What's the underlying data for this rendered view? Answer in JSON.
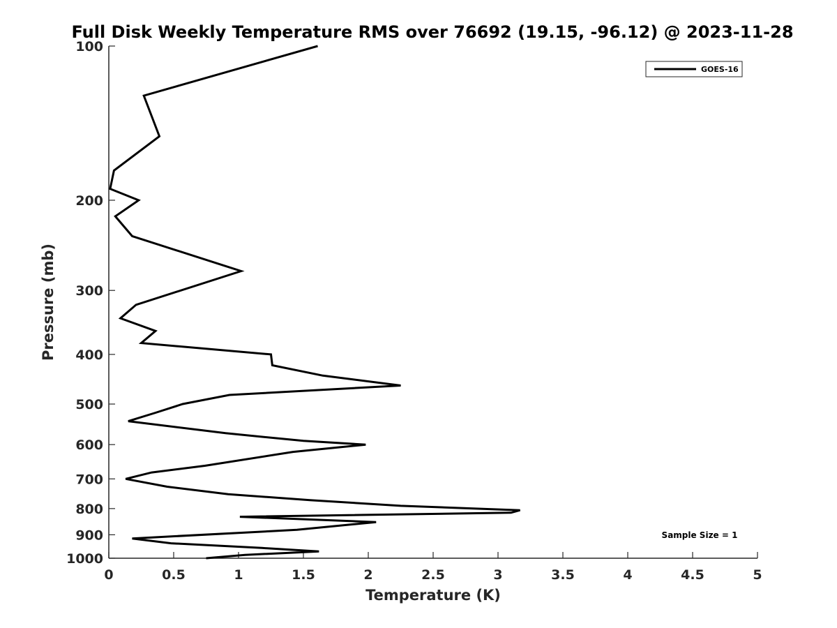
{
  "chart_data": {
    "type": "line",
    "title": "Full Disk Weekly Temperature RMS over 76692 (19.15, -96.12) @ 2023-11-28",
    "xlabel": "Temperature (K)",
    "ylabel": "Pressure (mb)",
    "xlim": [
      0,
      5
    ],
    "ylim": [
      100,
      1000
    ],
    "y_scale": "log",
    "y_reversed": true,
    "x_ticks": [
      "0",
      "0.5",
      "1",
      "1.5",
      "2",
      "2.5",
      "3",
      "3.5",
      "4",
      "4.5",
      "5"
    ],
    "y_ticks": [
      "100",
      "200",
      "300",
      "400",
      "500",
      "600",
      "700",
      "800",
      "900",
      "1000"
    ],
    "grid": false,
    "legend_position": "top-right",
    "series": [
      {
        "name": "GOES-16",
        "color": "#000000",
        "points": [
          [
            1.61,
            100
          ],
          [
            0.27,
            125
          ],
          [
            0.39,
            150
          ],
          [
            0.04,
            175
          ],
          [
            0.01,
            190
          ],
          [
            0.23,
            200
          ],
          [
            0.05,
            215
          ],
          [
            0.18,
            235
          ],
          [
            1.02,
            275
          ],
          [
            0.21,
            320
          ],
          [
            0.09,
            340
          ],
          [
            0.36,
            360
          ],
          [
            0.25,
            380
          ],
          [
            1.25,
            400
          ],
          [
            1.26,
            420
          ],
          [
            1.65,
            440
          ],
          [
            2.25,
            460
          ],
          [
            0.93,
            480
          ],
          [
            0.57,
            500
          ],
          [
            0.36,
            520
          ],
          [
            0.15,
            540
          ],
          [
            0.9,
            570
          ],
          [
            1.5,
            590
          ],
          [
            1.98,
            600
          ],
          [
            1.42,
            620
          ],
          [
            0.74,
            660
          ],
          [
            0.33,
            680
          ],
          [
            0.13,
            700
          ],
          [
            0.45,
            725
          ],
          [
            0.92,
            750
          ],
          [
            1.55,
            770
          ],
          [
            2.25,
            790
          ],
          [
            3.17,
            806
          ],
          [
            3.1,
            815
          ],
          [
            1.01,
            830
          ],
          [
            2.06,
            850
          ],
          [
            1.45,
            880
          ],
          [
            0.18,
            915
          ],
          [
            0.48,
            935
          ],
          [
            1.18,
            955
          ],
          [
            1.62,
            970
          ],
          [
            1.05,
            985
          ],
          [
            0.75,
            1000
          ]
        ]
      }
    ],
    "annotations": [
      "Sample Size = 1"
    ]
  }
}
